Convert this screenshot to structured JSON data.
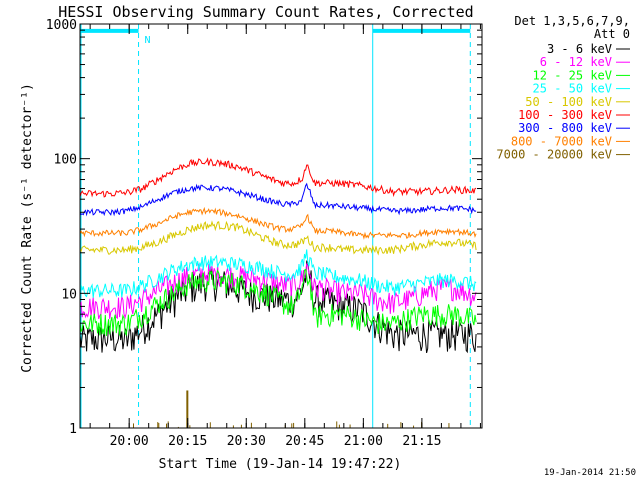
{
  "chart_data": {
    "type": "line",
    "title": "HESSI Observing Summary Count Rates, Corrected",
    "xlabel": "Start Time (19-Jan-14 19:47:22)",
    "ylabel": "Corrected Count Rate (s⁻¹ detector⁻¹)",
    "y_scale": "log",
    "ylim": [
      1,
      1000
    ],
    "xlim_minutes_after_19_47_22": [
      0,
      103
    ],
    "x_ticks": [
      {
        "label": "20:00",
        "value": 12.6
      },
      {
        "label": "20:15",
        "value": 27.6
      },
      {
        "label": "20:30",
        "value": 42.6
      },
      {
        "label": "20:45",
        "value": 57.6
      },
      {
        "label": "21:00",
        "value": 72.6
      },
      {
        "label": "21:15",
        "value": 87.6
      }
    ],
    "y_ticks": [
      {
        "label": "1",
        "value": 1
      },
      {
        "label": "10",
        "value": 10
      },
      {
        "label": "100",
        "value": 100
      },
      {
        "label": "1000",
        "value": 1000
      }
    ],
    "legend_header": [
      "Det 1,3,5,6,7,9,",
      "Att 0"
    ],
    "legend_position": "right",
    "flag_label": "N",
    "timestamp": "19-Jan-2014 21:50",
    "x_minutes": [
      0,
      4,
      8,
      12,
      16,
      20,
      24,
      28,
      32,
      36,
      40,
      44,
      48,
      52,
      55,
      57,
      58,
      59,
      60,
      62,
      64,
      68,
      72,
      76,
      80,
      84,
      88,
      92,
      96,
      100,
      103
    ],
    "series": [
      {
        "name": "3 - 6 keV",
        "color": "#000000",
        "values": [
          4.5,
          4.6,
          4.7,
          4.5,
          5.5,
          7,
          9,
          11,
          12,
          12,
          11,
          10,
          9.5,
          9,
          9,
          11,
          14,
          13,
          9,
          9,
          8.5,
          8,
          7.5,
          6,
          5,
          5,
          5,
          5,
          5,
          5,
          4.5
        ]
      },
      {
        "name": "6 - 12 keV",
        "color": "#ff00ff",
        "values": [
          8,
          8,
          8,
          8,
          9,
          10.5,
          12,
          13.5,
          14,
          14,
          13.5,
          13,
          12.5,
          11.5,
          11.5,
          13,
          16,
          14,
          11,
          11,
          10.5,
          10,
          10,
          9,
          8.5,
          9,
          10,
          11,
          11,
          10,
          9
        ]
      },
      {
        "name": "12 - 25 keV",
        "color": "#00ff00",
        "values": [
          6,
          6,
          6,
          6,
          7,
          8.5,
          10,
          12,
          12.5,
          12.5,
          12,
          11,
          10,
          8.5,
          8,
          11,
          14,
          12,
          6.5,
          7,
          7,
          7,
          6.5,
          6,
          6,
          6.5,
          7,
          7,
          7,
          6.5,
          6
        ]
      },
      {
        "name": "25 - 50 keV",
        "color": "#00ffff",
        "values": [
          10.5,
          10.5,
          10.5,
          10.5,
          11.5,
          13,
          15,
          16.5,
          17,
          17,
          16.5,
          16,
          15,
          14,
          14,
          16,
          20,
          17,
          14,
          14,
          13.5,
          13,
          12.5,
          11.5,
          11,
          11.5,
          12,
          12.5,
          12.5,
          12,
          11
        ]
      },
      {
        "name": "50 - 100 keV",
        "color": "#d8c800",
        "values": [
          21,
          21,
          21,
          21,
          22,
          24,
          27,
          30,
          32,
          32,
          31,
          28,
          25,
          23,
          23,
          24,
          26,
          24,
          22,
          22,
          22,
          21,
          21,
          21,
          21,
          22,
          23,
          24,
          24,
          23,
          22
        ]
      },
      {
        "name": "100 - 300 keV",
        "color": "#ff0000",
        "values": [
          55,
          55,
          55,
          56,
          60,
          70,
          82,
          92,
          95,
          93,
          88,
          80,
          72,
          66,
          66,
          72,
          90,
          80,
          66,
          66,
          66,
          65,
          63,
          60,
          57,
          57,
          57,
          58,
          59,
          58,
          57
        ]
      },
      {
        "name": "300 - 800 keV",
        "color": "#0000ff",
        "values": [
          40,
          40,
          40,
          41,
          44,
          50,
          56,
          60,
          61,
          60,
          57,
          53,
          49,
          46,
          46,
          50,
          64,
          56,
          45,
          45,
          45,
          44,
          43,
          42,
          41,
          41,
          42,
          43,
          43,
          42,
          40
        ]
      },
      {
        "name": "800 - 7000 keV",
        "color": "#ff8000",
        "values": [
          28,
          28,
          28,
          28,
          30,
          33,
          37,
          40,
          41,
          40,
          38,
          35,
          32,
          30,
          30,
          32,
          38,
          34,
          29,
          29,
          29,
          28,
          27,
          27,
          27,
          27,
          28,
          29,
          29,
          28,
          27
        ]
      },
      {
        "name": "7000 - 20000 keV",
        "color": "#806000",
        "values": [
          0,
          0,
          0,
          0,
          0,
          0,
          0,
          0,
          0,
          0,
          0,
          0,
          0,
          0,
          0,
          0,
          0,
          0,
          0,
          0,
          0,
          0,
          0,
          0,
          0,
          0,
          0,
          0,
          0,
          0,
          0
        ],
        "spikes": [
          {
            "x": 27.5,
            "y": 1.9
          }
        ]
      }
    ],
    "saa_intervals_minutes": [
      [
        0,
        15
      ],
      [
        75,
        100
      ]
    ],
    "night_bar_level": 890
  }
}
